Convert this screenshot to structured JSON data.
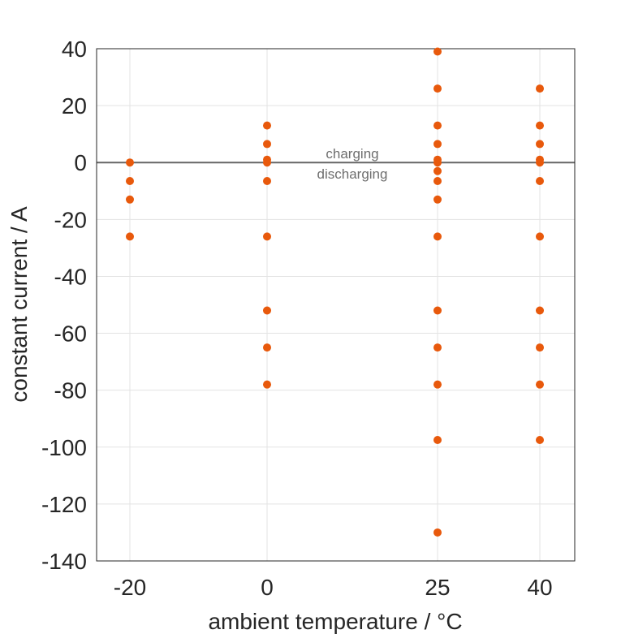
{
  "chart_data": {
    "type": "scatter",
    "title": "",
    "xlabel": "ambient temperature / °C",
    "ylabel": "constant current / A",
    "xlim": [
      -20,
      40
    ],
    "ylim": [
      -140,
      40
    ],
    "x_ticks": [
      -20,
      0,
      25,
      40
    ],
    "x_tick_labels": [
      "-20",
      "0",
      "25",
      "40"
    ],
    "y_ticks": [
      40,
      20,
      0,
      -20,
      -40,
      -60,
      -80,
      -100,
      -120,
      -140
    ],
    "y_tick_labels": [
      "40",
      "20",
      "0",
      "-20",
      "-40",
      "-60",
      "-80",
      "-100",
      "-120",
      "-140"
    ],
    "grid": true,
    "reference_line": {
      "y": 0,
      "color": "#666666"
    },
    "annotations": {
      "above": "charging",
      "below": "discharging"
    },
    "marker_color": "#e8590c",
    "series": [
      {
        "x": -20,
        "values": [
          0,
          -6.5,
          -13,
          -26
        ]
      },
      {
        "x": 0,
        "values": [
          13,
          6.5,
          1,
          0,
          -6.5,
          -26,
          -52,
          -65,
          -78
        ]
      },
      {
        "x": 25,
        "values": [
          39,
          26,
          13,
          6.5,
          1,
          0,
          -3,
          -6.5,
          -13,
          -26,
          -52,
          -65,
          -78,
          -97.5,
          -130
        ]
      },
      {
        "x": 40,
        "values": [
          26,
          13,
          6.5,
          1,
          0,
          -6.5,
          -26,
          -52,
          -65,
          -78,
          -97.5
        ]
      }
    ]
  }
}
